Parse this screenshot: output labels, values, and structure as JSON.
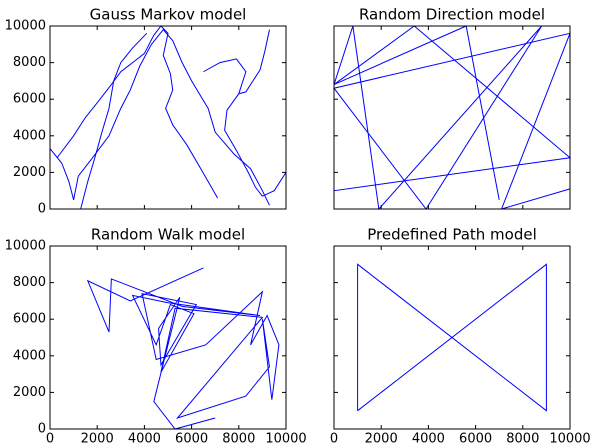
{
  "chart_data": [
    {
      "type": "line",
      "title": "Gauss Markov model",
      "color": "#0000ff",
      "xlim": [
        0,
        10000
      ],
      "ylim": [
        0,
        10000
      ],
      "xticks": [
        0,
        2000,
        4000,
        6000,
        8000,
        10000
      ],
      "yticks": [
        0,
        2000,
        4000,
        6000,
        8000,
        10000
      ],
      "series": [
        {
          "x": [
            0,
            500,
            800,
            1000,
            1200,
            1800,
            2500,
            3000,
            3400,
            3800,
            4300,
            4800,
            5200,
            5600,
            6000,
            6700,
            7000,
            7800,
            8500,
            9000,
            9300
          ],
          "y": [
            3300,
            2500,
            1500,
            500,
            1800,
            2800,
            4000,
            5500,
            6500,
            7800,
            9000,
            9800,
            9200,
            8000,
            7000,
            5500,
            4200,
            3000,
            2200,
            1000,
            200
          ]
        },
        {
          "x": [
            300,
            1000,
            1500,
            2000,
            2600,
            3000,
            3500,
            4000,
            4400,
            4700,
            5000,
            4800,
            5100,
            5200,
            4900,
            5200,
            5800,
            6300,
            6700,
            7100
          ],
          "y": [
            2800,
            4000,
            5000,
            5800,
            6800,
            7500,
            8000,
            8500,
            9500,
            10000,
            9600,
            8400,
            7400,
            6500,
            5500,
            4600,
            3500,
            2400,
            1500,
            600
          ]
        },
        {
          "x": [
            1300,
            1600,
            1900,
            2200,
            2500,
            2700,
            3000,
            3500,
            4100
          ],
          "y": [
            0,
            1500,
            2800,
            4200,
            5500,
            7000,
            8000,
            8800,
            9600
          ]
        },
        {
          "x": [
            6500,
            7200,
            7900,
            8300,
            8000,
            7500,
            7400,
            7900,
            8400,
            8700,
            9000,
            9500,
            10000
          ],
          "y": [
            7500,
            8000,
            8200,
            7500,
            6300,
            5400,
            4300,
            3200,
            2000,
            1200,
            700,
            1000,
            2000
          ]
        },
        {
          "x": [
            9300,
            9100,
            8900,
            8600,
            8300,
            8000
          ],
          "y": [
            9800,
            8600,
            7600,
            7000,
            6400,
            6300
          ]
        }
      ]
    },
    {
      "type": "line",
      "title": "Random Direction model",
      "color": "#0000ff",
      "xlim": [
        0,
        10000
      ],
      "ylim": [
        0,
        10000
      ],
      "xticks": [
        0,
        2000,
        4000,
        6000,
        8000,
        10000
      ],
      "yticks": [
        0,
        2000,
        4000,
        6000,
        8000,
        10000
      ],
      "series": [
        {
          "x": [
            7000,
            5600,
            0,
            3400,
            10000,
            0,
            0,
            800,
            1900,
            8800,
            3900,
            0,
            10000,
            7100,
            10000
          ],
          "y": [
            500,
            10000,
            6800,
            10000,
            2800,
            1000,
            6800,
            10000,
            0,
            10000,
            0,
            6600,
            9600,
            0,
            1100
          ]
        }
      ]
    },
    {
      "type": "line",
      "title": "Random Walk model",
      "color": "#0000ff",
      "xlim": [
        0,
        10000
      ],
      "ylim": [
        0,
        10000
      ],
      "xticks": [
        0,
        2000,
        4000,
        6000,
        8000,
        10000
      ],
      "yticks": [
        0,
        2000,
        4000,
        6000,
        8000,
        10000
      ],
      "series": [
        {
          "x": [
            7000,
            5300,
            4400,
            5500,
            4600,
            4700,
            6200,
            3900,
            4500,
            6600,
            9000,
            8500,
            9200,
            9700,
            9400,
            9000,
            9300,
            8300,
            5400,
            9000,
            5300,
            4700,
            6100,
            5100,
            4500,
            3500,
            5000,
            8900,
            5600,
            2600,
            2500,
            1600,
            3400,
            6500
          ],
          "y": [
            600,
            0,
            1500,
            7200,
            5500,
            3500,
            6800,
            7400,
            3800,
            4600,
            7500,
            4600,
            6200,
            4600,
            1600,
            6000,
            3400,
            1800,
            600,
            6100,
            6600,
            3100,
            6300,
            6800,
            4600,
            7300,
            6900,
            6200,
            6700,
            8200,
            5300,
            8100,
            7000,
            8800
          ]
        }
      ]
    },
    {
      "type": "line",
      "title": "Predefined Path model",
      "color": "#0000ff",
      "xlim": [
        0,
        10000
      ],
      "ylim": [
        0,
        10000
      ],
      "xticks": [
        0,
        2000,
        4000,
        6000,
        8000,
        10000
      ],
      "yticks": [
        0,
        2000,
        4000,
        6000,
        8000,
        10000
      ],
      "series": [
        {
          "x": [
            1000,
            1000,
            9000,
            9000,
            1000
          ],
          "y": [
            1000,
            9000,
            1000,
            9000,
            1000
          ]
        }
      ]
    }
  ]
}
